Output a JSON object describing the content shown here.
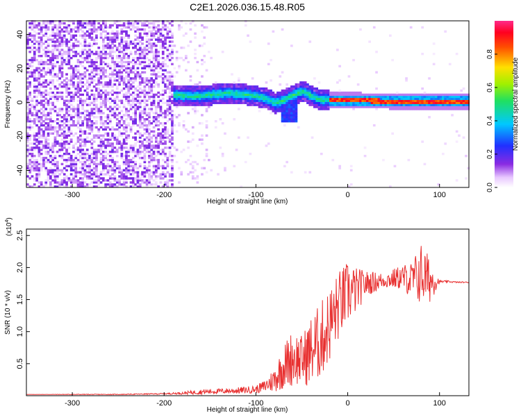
{
  "figure_title": "C2E1.2026.036.15.48.R05",
  "chart_data": [
    {
      "type": "heatmap",
      "title": "C2E1.2026.036.15.48.R05",
      "xlabel": "Height of straight line (km)",
      "ylabel": "Frequency (Hz)",
      "xlim": [
        -350,
        132
      ],
      "ylim": [
        -50,
        48
      ],
      "x_ticks": [
        -300,
        -200,
        -100,
        0,
        100
      ],
      "x_tick_labels": [
        "-300",
        "-200",
        "-100",
        "0",
        "100"
      ],
      "y_ticks": [
        -40,
        -20,
        0,
        20,
        40
      ],
      "y_tick_labels": [
        "-40",
        "-20",
        "0",
        "20",
        "40"
      ],
      "colorbar": {
        "label": "Normalized spectral amplitude",
        "range": [
          0,
          1
        ],
        "ticks": [
          0.0,
          0.2,
          0.4,
          0.6,
          0.8
        ],
        "tick_labels": [
          "0.0",
          "0.2",
          "0.4",
          "0.6",
          "0.8"
        ],
        "colormap": "rainbow (white-violet-blue-cyan-green-yellow-red-magenta)"
      },
      "regions": [
        {
          "x_range": [
            -350,
            -190
          ],
          "freq_range": [
            -50,
            48
          ],
          "amplitude": 0.05,
          "pattern": "noise"
        },
        {
          "x_range": [
            -190,
            -150
          ],
          "freq_range": [
            -50,
            48
          ],
          "amplitude": 0.02,
          "pattern": "sparse noise"
        },
        {
          "x_range": [
            -190,
            -70
          ],
          "freq_center": 3,
          "amplitude": 0.4,
          "pattern": "band"
        },
        {
          "x_range": [
            -70,
            -20
          ],
          "freq_center": 2,
          "amplitude": 0.35,
          "pattern": "wavy band with dip near -60 to -10 Hz"
        },
        {
          "x_range": [
            -20,
            132
          ],
          "freq_center": 0,
          "amplitude": 0.95,
          "pattern": "narrow band"
        }
      ],
      "ridge": [
        {
          "x": -190,
          "f": 4
        },
        {
          "x": -170,
          "f": 3
        },
        {
          "x": -150,
          "f": 4
        },
        {
          "x": -130,
          "f": 5
        },
        {
          "x": -110,
          "f": 4
        },
        {
          "x": -100,
          "f": 3
        },
        {
          "x": -90,
          "f": 2
        },
        {
          "x": -80,
          "f": -1
        },
        {
          "x": -70,
          "f": 1
        },
        {
          "x": -60,
          "f": 4
        },
        {
          "x": -50,
          "f": 6
        },
        {
          "x": -40,
          "f": 3
        },
        {
          "x": -30,
          "f": 1
        },
        {
          "x": -20,
          "f": 1
        },
        {
          "x": 0,
          "f": 1
        },
        {
          "x": 50,
          "f": 0
        },
        {
          "x": 100,
          "f": 0
        },
        {
          "x": 132,
          "f": 0
        }
      ]
    },
    {
      "type": "line",
      "xlabel": "Height of straight line (km)",
      "ylabel": "SNR (10 * v/v)",
      "y_multiplier_label": "(x10",
      "y_multiplier_exponent": "4",
      "xlim": [
        -350,
        132
      ],
      "ylim": [
        0,
        2.6
      ],
      "x_ticks": [
        -300,
        -200,
        -100,
        0,
        100
      ],
      "x_tick_labels": [
        "-300",
        "-200",
        "-100",
        "0",
        "100"
      ],
      "y_ticks": [
        0.5,
        1.0,
        1.5,
        2.0,
        2.5
      ],
      "y_tick_labels": [
        "0.5",
        "1.0",
        "1.5",
        "2.0",
        "2.5"
      ],
      "color": "#e83030",
      "series": [
        {
          "x": [
            -350,
            -300,
            -250,
            -200,
            -180,
            -160,
            -140,
            -120,
            -100,
            -90,
            -80,
            -70,
            -60,
            -50,
            -40,
            -30,
            -20,
            -10,
            0,
            10,
            20,
            40,
            60,
            70,
            80,
            90,
            100,
            110,
            120,
            132
          ],
          "y": [
            0.02,
            0.02,
            0.02,
            0.03,
            0.04,
            0.06,
            0.07,
            0.08,
            0.1,
            0.15,
            0.25,
            0.45,
            0.6,
            0.55,
            0.7,
            0.85,
            1.1,
            1.4,
            1.6,
            1.65,
            1.75,
            1.8,
            1.85,
            1.8,
            1.9,
            1.8,
            1.78,
            1.78,
            1.77,
            1.77
          ],
          "noise": [
            0.0,
            0.005,
            0.005,
            0.01,
            0.02,
            0.04,
            0.04,
            0.05,
            0.06,
            0.1,
            0.2,
            0.35,
            0.45,
            0.4,
            0.55,
            0.6,
            0.6,
            0.55,
            0.5,
            0.35,
            0.2,
            0.12,
            0.2,
            0.3,
            0.5,
            0.35,
            0.02,
            0.015,
            0.01,
            0.01
          ]
        }
      ]
    }
  ]
}
